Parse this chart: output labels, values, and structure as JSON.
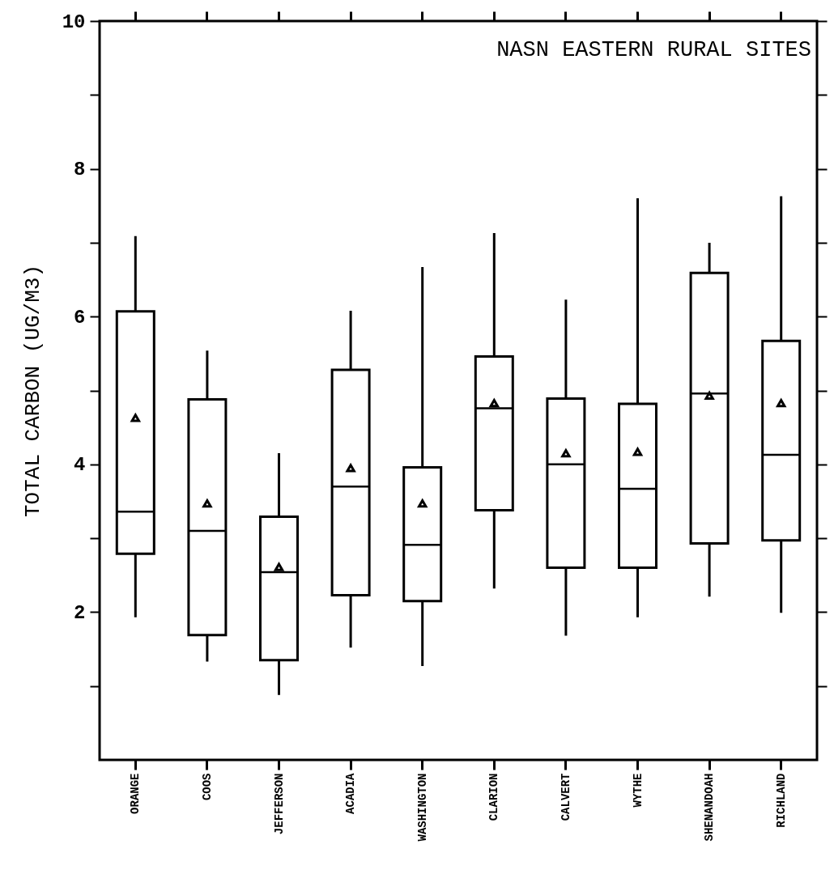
{
  "chart_data": {
    "type": "box",
    "title": "NASN EASTERN RURAL SITES",
    "ylabel": "TOTAL CARBON (UG/M3)",
    "categories": [
      "ORANGE",
      "COOS",
      "JEFFERSON",
      "ACADIA",
      "WASHINGTON",
      "CLARION",
      "CALVERT",
      "WYTHE",
      "SHENANDOAH",
      "RICHLAND"
    ],
    "boxes": [
      {
        "low": 1.93,
        "q1": 2.79,
        "median": 3.36,
        "q3": 6.07,
        "high": 7.09,
        "mean": 4.63
      },
      {
        "low": 1.33,
        "q1": 1.69,
        "median": 3.1,
        "q3": 4.88,
        "high": 5.54,
        "mean": 3.47
      },
      {
        "low": 0.88,
        "q1": 1.35,
        "median": 2.54,
        "q3": 3.29,
        "high": 4.15,
        "mean": 2.61
      },
      {
        "low": 1.52,
        "q1": 2.23,
        "median": 3.7,
        "q3": 5.28,
        "high": 6.08,
        "mean": 3.95
      },
      {
        "low": 1.27,
        "q1": 2.15,
        "median": 2.91,
        "q3": 3.96,
        "high": 6.67,
        "mean": 3.47
      },
      {
        "low": 2.32,
        "q1": 3.38,
        "median": 4.76,
        "q3": 5.46,
        "high": 7.13,
        "mean": 4.83
      },
      {
        "low": 1.68,
        "q1": 2.6,
        "median": 4.0,
        "q3": 4.89,
        "high": 6.23,
        "mean": 4.15
      },
      {
        "low": 1.93,
        "q1": 2.6,
        "median": 3.67,
        "q3": 4.82,
        "high": 7.6,
        "mean": 4.17
      },
      {
        "low": 2.21,
        "q1": 2.93,
        "median": 4.96,
        "q3": 6.59,
        "high": 7.0,
        "mean": 4.93
      },
      {
        "low": 1.99,
        "q1": 2.97,
        "median": 4.13,
        "q3": 5.67,
        "high": 7.63,
        "mean": 4.83
      }
    ],
    "ylim": [
      0,
      10
    ],
    "yticks": [
      {
        "value": 1,
        "label": null
      },
      2,
      {
        "value": 3,
        "label": null
      },
      4,
      {
        "value": 5,
        "label": null
      },
      6,
      {
        "value": 7,
        "label": null
      },
      8,
      {
        "value": 9,
        "label": null
      },
      10
    ],
    "marker": "triangle",
    "grid": false
  }
}
